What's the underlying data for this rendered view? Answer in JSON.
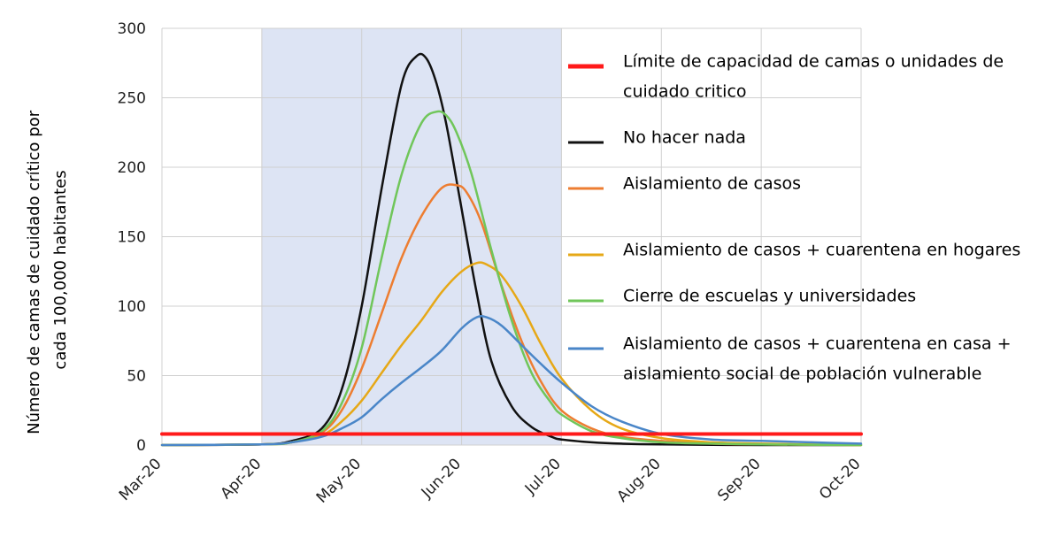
{
  "chart_data": {
    "type": "line",
    "title": "",
    "xlabel": "",
    "ylabel": "Número de camas de cuidado crítico por cada 100,000 habitantes",
    "ylabel_lines": [
      "Número de camas de cuidado crítico por",
      "cada 100,000 habitantes"
    ],
    "x_categories": [
      "Mar-20",
      "Apr-20",
      "May-20",
      "Jun-20",
      "Jul-20",
      "Aug-20",
      "Sep-20",
      "Oct-20"
    ],
    "ylim": [
      0,
      300
    ],
    "yticks": [
      0,
      50,
      100,
      150,
      200,
      250,
      300
    ],
    "grid": true,
    "shaded_region": {
      "from": "Apr-20",
      "to": "Jul-20",
      "color": "#dde4f4"
    },
    "legend_position": "right",
    "series": [
      {
        "name": "Límite de capacidad de camas o unidades de cuidado critico",
        "label_lines": [
          "Límite de capacidad de camas o unidades de",
          "cuidado critico"
        ],
        "color": "#ff1a1a",
        "x": [
          0,
          7
        ],
        "y": [
          8,
          8
        ]
      },
      {
        "name": "No hacer nada",
        "label_lines": [
          "No hacer nada"
        ],
        "color": "#111111",
        "x": [
          0,
          1,
          1.3,
          1.6,
          1.8,
          2.0,
          2.2,
          2.4,
          2.55,
          2.65,
          2.75,
          2.85,
          3.0,
          3.15,
          3.3,
          3.5,
          3.7,
          3.9,
          4.0,
          4.3,
          4.6,
          5.0,
          6.0,
          7.0
        ],
        "y": [
          0,
          0.5,
          3,
          12,
          40,
          100,
          185,
          260,
          280,
          278,
          260,
          230,
          170,
          110,
          60,
          28,
          13,
          6,
          4,
          2,
          1,
          0.5,
          0,
          0
        ]
      },
      {
        "name": "Aislamiento de casos",
        "label_lines": [
          "Aislamiento de casos"
        ],
        "color": "#ed7d31",
        "x": [
          0,
          1,
          1.3,
          1.6,
          1.8,
          2.0,
          2.2,
          2.4,
          2.6,
          2.8,
          2.95,
          3.05,
          3.2,
          3.4,
          3.6,
          3.8,
          4.0,
          4.3,
          4.6,
          5.0,
          5.5,
          6.0,
          7.0
        ],
        "y": [
          0,
          0.5,
          2,
          9,
          25,
          55,
          95,
          135,
          165,
          185,
          187,
          182,
          160,
          115,
          75,
          45,
          25,
          12,
          6,
          3,
          1,
          0.5,
          0
        ]
      },
      {
        "name": "Aislamiento de casos + cuarentena en hogares",
        "label_lines": [
          "Aislamiento de casos + cuarentena en hogares"
        ],
        "color": "#e6a817",
        "x": [
          0,
          1,
          1.3,
          1.6,
          1.8,
          2.0,
          2.2,
          2.4,
          2.6,
          2.8,
          3.0,
          3.15,
          3.25,
          3.4,
          3.6,
          3.8,
          4.0,
          4.3,
          4.6,
          5.0,
          5.5,
          6.0,
          7.0
        ],
        "y": [
          0,
          0.5,
          2,
          7,
          17,
          32,
          52,
          72,
          90,
          110,
          125,
          131,
          130,
          122,
          100,
          72,
          48,
          25,
          12,
          5,
          2,
          1,
          0
        ]
      },
      {
        "name": "Cierre de escuelas y universidades",
        "label_lines": [
          "Cierre de escuelas y universidades"
        ],
        "color": "#70c65a",
        "x": [
          0,
          1,
          1.3,
          1.6,
          1.8,
          2.0,
          2.2,
          2.4,
          2.6,
          2.75,
          2.85,
          2.95,
          3.1,
          3.3,
          3.5,
          3.7,
          3.9,
          4.0,
          4.3,
          4.6,
          5.0,
          5.5,
          6.0,
          7.0
        ],
        "y": [
          0,
          0.5,
          2,
          10,
          30,
          70,
          135,
          195,
          232,
          240,
          237,
          225,
          195,
          140,
          90,
          52,
          30,
          22,
          10,
          5,
          2,
          1,
          0.5,
          0
        ]
      },
      {
        "name": "Aislamiento de casos + cuarentena en casa + aislamiento social de población vulnerable",
        "label_lines": [
          "Aislamiento de casos + cuarentena en casa +",
          "aislamiento social de población vulnerable"
        ],
        "color": "#4a86c8",
        "x": [
          0,
          1,
          1.3,
          1.6,
          1.8,
          2.0,
          2.2,
          2.4,
          2.6,
          2.8,
          3.0,
          3.15,
          3.25,
          3.4,
          3.6,
          3.8,
          4.0,
          4.3,
          4.6,
          5.0,
          5.5,
          6.0,
          6.5,
          7.0
        ],
        "y": [
          0,
          0.5,
          2,
          6,
          12,
          20,
          33,
          45,
          56,
          68,
          84,
          92,
          92,
          86,
          72,
          58,
          45,
          28,
          17,
          8,
          4,
          3,
          2,
          1
        ]
      }
    ]
  }
}
